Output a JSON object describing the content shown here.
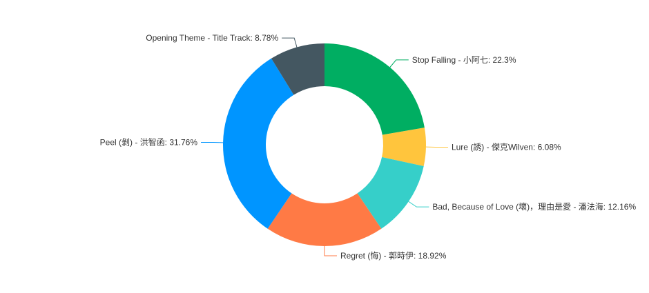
{
  "chart_data": {
    "type": "pie",
    "variant": "donut",
    "start": "top, clockwise",
    "legend": "none",
    "slices": [
      {
        "label": "Stop Falling - 小阿七",
        "value": 22.3,
        "text": "Stop Falling - 小阿七: 22.3%",
        "color": "#00AE62"
      },
      {
        "label": "Lure (誘) - 傑克Wilven",
        "value": 6.08,
        "text": "Lure (誘) - 傑克Wilven: 6.08%",
        "color": "#FFC53D"
      },
      {
        "label": "Bad, Because of Love (壞)，理由是愛 - 潘法海",
        "value": 12.16,
        "text": "Bad, Because of Love (壞)，理由是愛 - 潘法海: 12.16%",
        "color": "#36CFC9"
      },
      {
        "label": "Regret (悔) - 郭時伊",
        "value": 18.92,
        "text": "Regret (悔) - 郭時伊: 18.92%",
        "color": "#FF7A45"
      },
      {
        "label": "Peel (剝) - 洪智函",
        "value": 31.76,
        "text": "Peel (剝) - 洪智函: 31.76%",
        "color": "#0095FF"
      },
      {
        "label": "Opening Theme - Title Track",
        "value": 8.78,
        "text": "Opening Theme - Title Track: 8.78%",
        "color": "#445761"
      }
    ]
  }
}
